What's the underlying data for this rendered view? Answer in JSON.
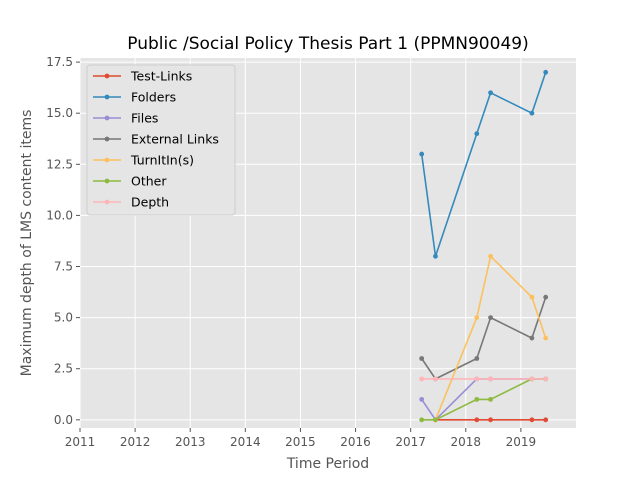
{
  "chart_data": {
    "type": "line",
    "title": "Public /Social Policy Thesis Part 1 (PPMN90049)",
    "xlabel": "Time Period",
    "ylabel": "Maximum depth of LMS content items",
    "xlim": [
      2011,
      2020
    ],
    "ylim": [
      -0.4,
      17.7
    ],
    "xticks": [
      2011,
      2012,
      2013,
      2014,
      2015,
      2016,
      2017,
      2018,
      2019
    ],
    "xtick_labels": [
      "2011",
      "2012",
      "2013",
      "2014",
      "2015",
      "2016",
      "2017",
      "2018",
      "2019"
    ],
    "yticks": [
      0,
      2.5,
      5,
      7.5,
      10,
      12.5,
      15,
      17.5
    ],
    "ytick_labels": [
      "0.0",
      "2.5",
      "5.0",
      "7.5",
      "10.0",
      "12.5",
      "15.0",
      "17.5"
    ],
    "grid": true,
    "legend_position": "top-left",
    "x": [
      2017.2,
      2017.45,
      2018.2,
      2018.45,
      2019.2,
      2019.45
    ],
    "series": [
      {
        "name": "Test-Links",
        "color": "#e24a33",
        "values": [
          null,
          0,
          0,
          0,
          0,
          0
        ]
      },
      {
        "name": "Folders",
        "color": "#348abd",
        "values": [
          13,
          8,
          14,
          16,
          15,
          17
        ]
      },
      {
        "name": "Files",
        "color": "#988ed5",
        "values": [
          1,
          0,
          2,
          2,
          2,
          2
        ]
      },
      {
        "name": "External Links",
        "color": "#777777",
        "values": [
          3,
          2,
          3,
          5,
          4,
          6
        ]
      },
      {
        "name": "TurnItIn(s)",
        "color": "#fbc15e",
        "values": [
          null,
          0,
          5,
          8,
          6,
          4
        ]
      },
      {
        "name": "Other",
        "color": "#8eba42",
        "values": [
          0,
          0,
          1,
          1,
          2,
          2
        ]
      },
      {
        "name": "Depth",
        "color": "#ffb5b8",
        "values": [
          2,
          2,
          2,
          2,
          2,
          2
        ]
      }
    ]
  }
}
